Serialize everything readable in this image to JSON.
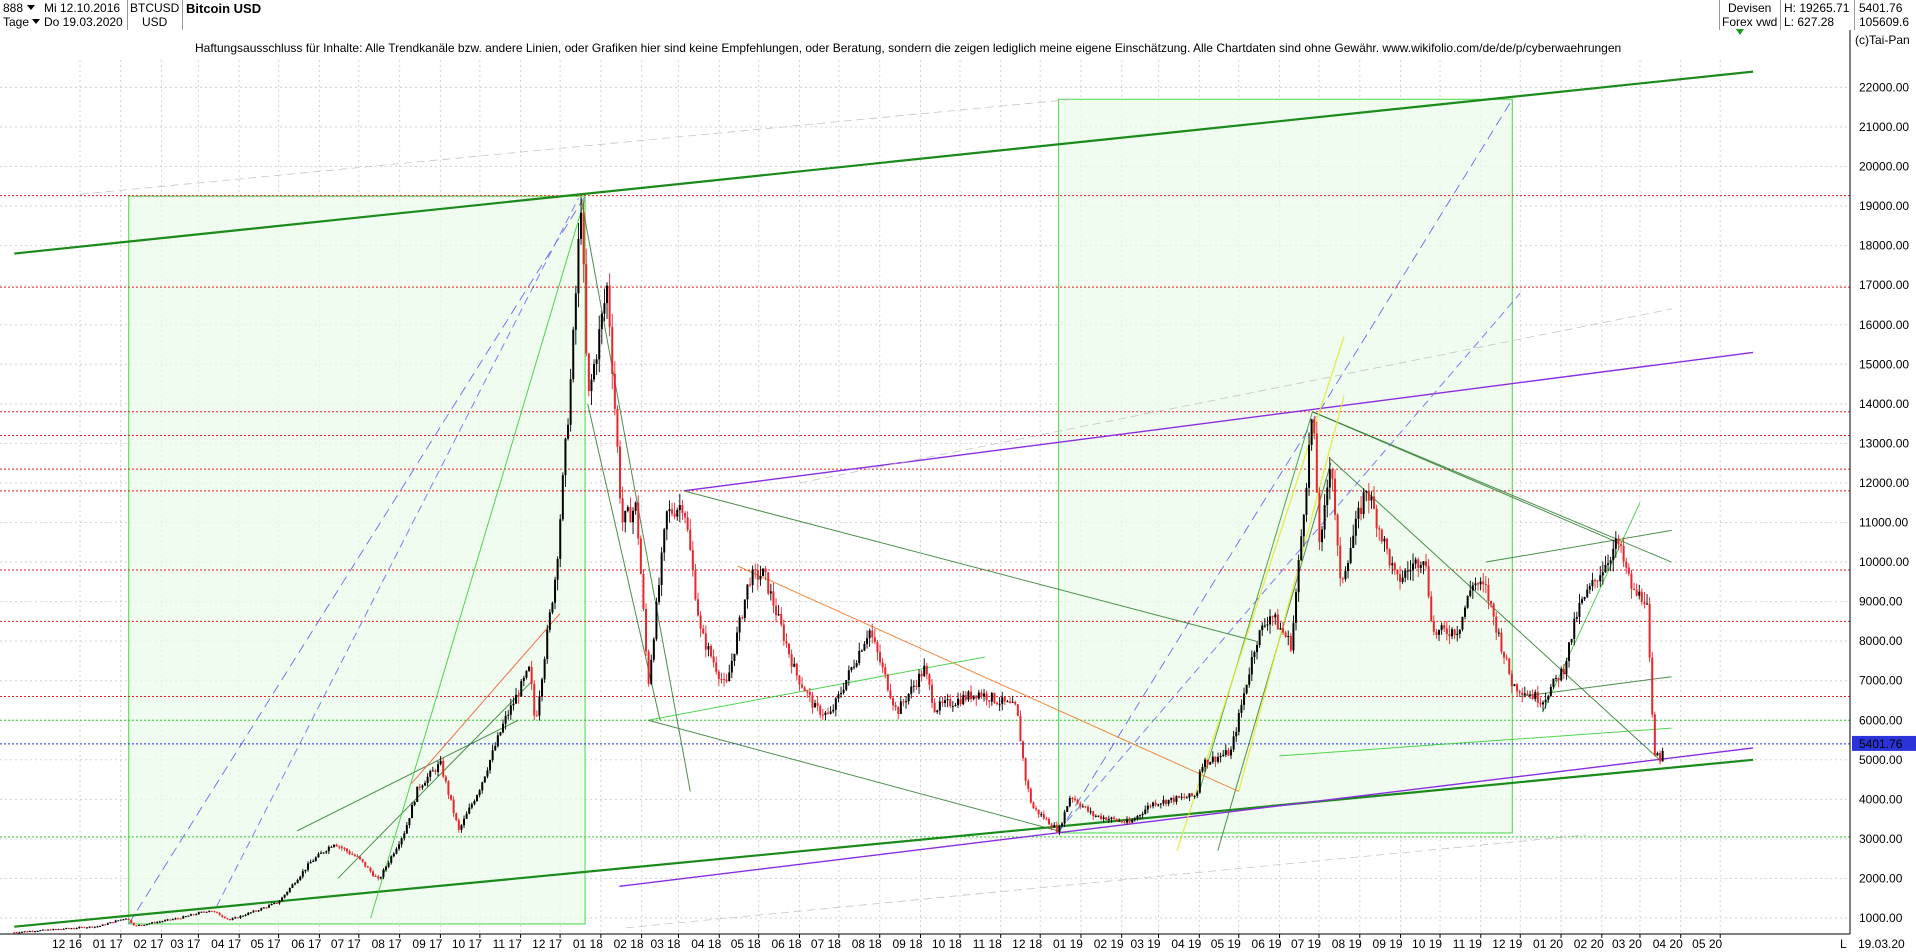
{
  "header": {
    "symbol_code": "888",
    "period": "Tage",
    "date_from": "Mi 12.10.2016",
    "date_to": "Do 19.03.2020",
    "ticker": "BTCUSD",
    "currency": "USD",
    "title": "Bitcoin USD",
    "category": "Devisen",
    "source": "Forex vwd",
    "high_label": "H: 19265.71",
    "low_label": "L: 627.28",
    "last_price": "5401.76",
    "volume_info": "105609.6",
    "credit": "(c)Tai-Pan"
  },
  "disclaimer": "Haftungsausschluss für Inhalte: Alle Trendkanäle bzw. andere Linien, oder Grafiken hier sind keine Empfehlungen, oder Beratung, sondern die zeigen lediglich meine eigene Einschätzung. Alle Chartdaten sind ohne Gewähr.  www.wikifolio.com/de/de/p/cyberwaehrungen",
  "bottom_right": {
    "marker": "L",
    "date": "19.03.20"
  },
  "colors": {
    "candle_up": "#000000",
    "candle_down": "#e8262b",
    "channel_green": "#1a8a1a",
    "channel_purple": "#8a2be2",
    "box_fill": "#eafbea",
    "box_border": "#66dd66",
    "resistance_red": "#dd2222",
    "price_line_blue": "#1f2fd0",
    "last_price_bg": "#2a34d8"
  },
  "chart_data": {
    "type": "candlestick",
    "title": "Bitcoin USD",
    "x_tick_labels": [
      "12 16",
      "01 17",
      "02 17",
      "03 17",
      "04 17",
      "05 17",
      "06 17",
      "07 17",
      "08 17",
      "09 17",
      "10 17",
      "11 17",
      "12 17",
      "01 18",
      "02 18",
      "03 18",
      "04 18",
      "05 18",
      "06 18",
      "07 18",
      "08 18",
      "09 18",
      "10 18",
      "11 18",
      "12 18",
      "01 19",
      "02 19",
      "03 19",
      "04 19",
      "05 19",
      "06 19",
      "07 19",
      "08 19",
      "09 19",
      "10 19",
      "11 19",
      "12 19",
      "01 20",
      "02 20",
      "03 20",
      "04 20",
      "05 20"
    ],
    "y_ticks": [
      1000,
      2000,
      3000,
      4000,
      5000,
      6000,
      7000,
      8000,
      9000,
      10000,
      11000,
      12000,
      13000,
      14000,
      15000,
      16000,
      17000,
      18000,
      19000,
      20000,
      21000,
      22000
    ],
    "y_tick_labels": [
      "1000.00",
      "2000.00",
      "3000.00",
      "4000.00",
      "5000.00",
      "6000.00",
      "7000.00",
      "8000.00",
      "9000.00",
      "10000.00",
      "11000.00",
      "12000.00",
      "13000.00",
      "14000.00",
      "15000.00",
      "16000.00",
      "17000.00",
      "18000.00",
      "19000.00",
      "20000.00",
      "21000.00",
      "22000.00"
    ],
    "ylim": [
      0,
      23000
    ],
    "grid": true,
    "last_price": 5401.76,
    "price_path": [
      [
        "2016-10-12",
        640
      ],
      [
        "2016-11-15",
        720
      ],
      [
        "2016-12-15",
        790
      ],
      [
        "2017-01-05",
        1000
      ],
      [
        "2017-01-12",
        800
      ],
      [
        "2017-02-15",
        1000
      ],
      [
        "2017-03-10",
        1200
      ],
      [
        "2017-03-25",
        950
      ],
      [
        "2017-04-15",
        1200
      ],
      [
        "2017-05-01",
        1400
      ],
      [
        "2017-05-25",
        2400
      ],
      [
        "2017-06-12",
        2900
      ],
      [
        "2017-07-01",
        2500
      ],
      [
        "2017-07-16",
        1950
      ],
      [
        "2017-08-05",
        3200
      ],
      [
        "2017-08-15",
        4300
      ],
      [
        "2017-09-01",
        4900
      ],
      [
        "2017-09-15",
        3200
      ],
      [
        "2017-10-01",
        4300
      ],
      [
        "2017-10-20",
        6000
      ],
      [
        "2017-11-08",
        7300
      ],
      [
        "2017-11-12",
        5900
      ],
      [
        "2017-11-28",
        9800
      ],
      [
        "2017-12-10",
        15000
      ],
      [
        "2017-12-17",
        19200
      ],
      [
        "2017-12-22",
        14000
      ],
      [
        "2018-01-06",
        17000
      ],
      [
        "2018-01-17",
        11000
      ],
      [
        "2018-01-28",
        11400
      ],
      [
        "2018-02-06",
        6900
      ],
      [
        "2018-02-20",
        11200
      ],
      [
        "2018-03-05",
        11500
      ],
      [
        "2018-03-18",
        8200
      ],
      [
        "2018-04-06",
        6800
      ],
      [
        "2018-04-24",
        9600
      ],
      [
        "2018-05-05",
        9700
      ],
      [
        "2018-05-29",
        7200
      ],
      [
        "2018-06-13",
        6300
      ],
      [
        "2018-06-24",
        6100
      ],
      [
        "2018-07-24",
        8300
      ],
      [
        "2018-08-14",
        6200
      ],
      [
        "2018-09-04",
        7300
      ],
      [
        "2018-09-12",
        6300
      ],
      [
        "2018-10-15",
        6700
      ],
      [
        "2018-11-13",
        6300
      ],
      [
        "2018-11-20",
        4500
      ],
      [
        "2018-11-25",
        3800
      ],
      [
        "2018-12-15",
        3200
      ],
      [
        "2018-12-24",
        4100
      ],
      [
        "2019-01-10",
        3600
      ],
      [
        "2019-02-07",
        3400
      ],
      [
        "2019-02-24",
        3900
      ],
      [
        "2019-03-30",
        4100
      ],
      [
        "2019-04-02",
        4900
      ],
      [
        "2019-04-25",
        5200
      ],
      [
        "2019-05-14",
        8000
      ],
      [
        "2019-05-25",
        8700
      ],
      [
        "2019-06-10",
        7900
      ],
      [
        "2019-06-26",
        13800
      ],
      [
        "2019-07-02",
        10200
      ],
      [
        "2019-07-10",
        12800
      ],
      [
        "2019-07-17",
        9400
      ],
      [
        "2019-08-06",
        11900
      ],
      [
        "2019-08-29",
        9500
      ],
      [
        "2019-09-19",
        10200
      ],
      [
        "2019-09-26",
        8200
      ],
      [
        "2019-10-15",
        8300
      ],
      [
        "2019-10-26",
        9500
      ],
      [
        "2019-11-05",
        9300
      ],
      [
        "2019-11-25",
        6900
      ],
      [
        "2019-12-18",
        6500
      ],
      [
        "2020-01-03",
        7300
      ],
      [
        "2020-01-14",
        8800
      ],
      [
        "2020-02-13",
        10500
      ],
      [
        "2020-02-25",
        9200
      ],
      [
        "2020-03-06",
        9100
      ],
      [
        "2020-03-12",
        4900
      ],
      [
        "2020-03-13",
        5300
      ],
      [
        "2020-03-16",
        5000
      ],
      [
        "2020-03-19",
        5400
      ]
    ],
    "horizontal_levels": [
      {
        "value": 19265,
        "style": "red dotted"
      },
      {
        "value": 16950,
        "style": "red dotted"
      },
      {
        "value": 13800,
        "style": "red dotted"
      },
      {
        "value": 13200,
        "style": "red dotted"
      },
      {
        "value": 12350,
        "style": "red dotted"
      },
      {
        "value": 11800,
        "style": "red dotted"
      },
      {
        "value": 9800,
        "style": "red dotted"
      },
      {
        "value": 8500,
        "style": "red dotted"
      },
      {
        "value": 6600,
        "style": "red dotted"
      },
      {
        "value": 5401.76,
        "style": "blue dotted"
      },
      {
        "value": 6000,
        "style": "green dotted"
      },
      {
        "value": 3050,
        "style": "green dotted"
      }
    ],
    "annotations": [
      {
        "type": "box",
        "x": [
          "2017-01-07",
          "2017-12-20"
        ],
        "y": [
          850,
          19250
        ]
      },
      {
        "type": "box",
        "x": [
          "2018-12-15",
          "2019-11-25"
        ],
        "y": [
          3150,
          21700
        ]
      },
      {
        "type": "trendline",
        "color": "green",
        "x": [
          "2016-10-12",
          "2020-05-26"
        ],
        "y": [
          17800,
          22400
        ]
      },
      {
        "type": "trendline",
        "color": "green",
        "x": [
          "2016-10-12",
          "2020-05-26"
        ],
        "y": [
          780,
          5000
        ]
      },
      {
        "type": "trendline",
        "color": "purple",
        "x": [
          "2018-03-05",
          "2020-05-26"
        ],
        "y": [
          11800,
          15300
        ]
      },
      {
        "type": "trendline",
        "color": "purple",
        "x": [
          "2018-01-15",
          "2020-05-26"
        ],
        "y": [
          1800,
          5300
        ]
      }
    ]
  }
}
